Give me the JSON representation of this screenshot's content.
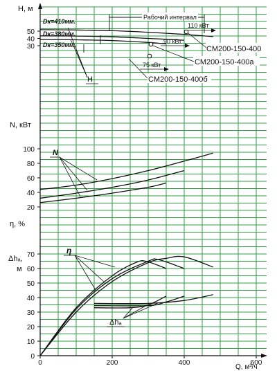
{
  "chart_data": {
    "type": "line",
    "x_axis": {
      "label": "Q, м³/ч",
      "ticks": [
        0,
        200,
        400,
        600
      ],
      "range": [
        0,
        600
      ]
    },
    "colors": {
      "grid": "#2ea043",
      "curve": "#111111",
      "background": "#ffffff"
    },
    "panels": [
      {
        "id": "head",
        "ylabel": "H, м",
        "ticks": [
          30,
          40,
          50
        ],
        "range": [
          26,
          56
        ],
        "series": [
          {
            "name": "Dк=410мм.",
            "x": [
              0,
              100,
              200,
              300,
              400,
              480
            ],
            "y": [
              52,
              51.6,
              50.6,
              48.5,
              45.5,
              42.5
            ]
          },
          {
            "name": "Dк=380мм.",
            "x": [
              0,
              100,
              200,
              300,
              400
            ],
            "y": [
              43.5,
              43.2,
              42.2,
              40,
              37.5
            ]
          },
          {
            "name": "Dк=350мм.",
            "x": [
              0,
              100,
              200,
              300,
              350
            ],
            "y": [
              38.5,
              38.1,
              37,
              34.5,
              32.5
            ]
          }
        ],
        "annotations": {
          "interval_label": "Рабочий интервал",
          "power_labels": [
            "110 кВт",
            "90 кВт",
            "75 кВт"
          ],
          "pump_labels": [
            "СМ200-150-400",
            "СМ200-150-400а",
            "СМ200-150-400б"
          ],
          "curve_label": "H"
        }
      },
      {
        "id": "power",
        "ylabel": "N, кВт",
        "ticks": [
          20,
          40,
          60,
          80,
          100
        ],
        "range": [
          18,
          108
        ],
        "series": [
          {
            "name": "410",
            "x": [
              0,
              100,
              200,
              300,
              400,
              480
            ],
            "y": [
              44,
              50,
              59,
              70,
              83,
              94
            ]
          },
          {
            "name": "380",
            "x": [
              0,
              100,
              200,
              300,
              400
            ],
            "y": [
              32,
              39,
              47,
              57,
              70
            ]
          },
          {
            "name": "350",
            "x": [
              0,
              100,
              200,
              300,
              350
            ],
            "y": [
              26,
              32,
              39,
              47,
              53
            ]
          }
        ],
        "curve_label": "N"
      },
      {
        "id": "efficiency",
        "ylabel": "η, %",
        "series": [
          {
            "name": "410",
            "x": [
              0,
              100,
              200,
              300,
              350,
              400,
              480
            ],
            "y": [
              0,
              30,
              51,
              64,
              67,
              68,
              61
            ]
          },
          {
            "name": "380",
            "x": [
              0,
              100,
              200,
              300,
              330,
              400
            ],
            "y": [
              0,
              32,
              53,
              65,
              66,
              60
            ]
          },
          {
            "name": "350",
            "x": [
              0,
              100,
              200,
              270,
              300,
              350
            ],
            "y": [
              0,
              33,
              55,
              64.5,
              64.5,
              60
            ]
          }
        ],
        "curve_label": "η"
      },
      {
        "id": "npsh",
        "ylabel": "Δhₐ, м",
        "ticks": [
          0,
          10,
          20,
          30,
          40,
          50,
          60,
          70
        ],
        "range": [
          0,
          72
        ],
        "series": [
          {
            "name": "410",
            "x": [
              150,
              300,
              400,
              480
            ],
            "y": [
              36,
              36,
              38,
              42
            ]
          },
          {
            "name": "380",
            "x": [
              150,
              300,
              350,
              400
            ],
            "y": [
              34.5,
              34.5,
              37,
              41
            ]
          },
          {
            "name": "350",
            "x": [
              150,
              250,
              300,
              350
            ],
            "y": [
              33,
              33,
              35,
              41
            ]
          }
        ],
        "curve_label": "Δhₐ"
      }
    ]
  },
  "labels": {
    "h_axis": "H, м",
    "n_axis": "N, кВт",
    "eta_axis": "η, %",
    "dh_axis_top": "Δhₐ,",
    "dh_axis_unit": "м",
    "q_axis": "Q, м³/ч",
    "d410": "Dк=410мм.",
    "d380": "Dк=380мм.",
    "d350": "Dк=350мм.",
    "interval": "Рабочий интервал",
    "p110": "110 кВт",
    "p90": "90 кВт",
    "p75": "75 кВт",
    "pump_a": "СМ200-150-400",
    "pump_b": "СМ200-150-400а",
    "pump_c": "СМ200-150-400б",
    "h_marker": "H",
    "n_marker": "N",
    "eta_marker": "η",
    "dh_marker": "Δhₐ"
  }
}
